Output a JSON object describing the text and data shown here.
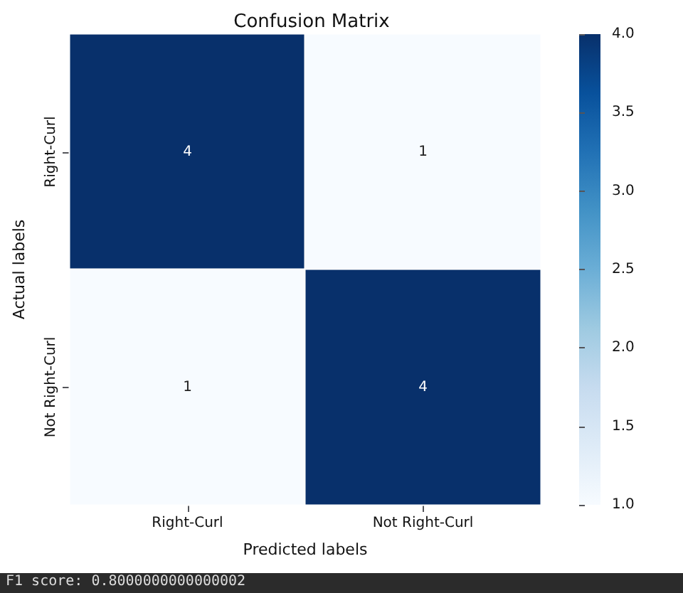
{
  "chart_data": {
    "type": "heatmap",
    "title": "Confusion Matrix",
    "xlabel": "Predicted labels",
    "ylabel": "Actual labels",
    "categories": [
      "Right-Curl",
      "Not Right-Curl"
    ],
    "y_categories": [
      "Right-Curl",
      "Not Right-Curl"
    ],
    "cells": [
      [
        4,
        1
      ],
      [
        1,
        4
      ]
    ],
    "data_labels": true,
    "clim": [
      1,
      4
    ],
    "cticks": [
      {
        "value": 1,
        "label": "1.0"
      },
      {
        "value": 1.5,
        "label": "1.5"
      },
      {
        "value": 2,
        "label": "2.0"
      },
      {
        "value": 2.5,
        "label": "2.5"
      },
      {
        "value": 3,
        "label": "3.0"
      },
      {
        "value": 3.5,
        "label": "3.5"
      },
      {
        "value": 4,
        "label": "4.0"
      }
    ],
    "annotations": [
      "F1 score: 0.8000000000000002"
    ]
  }
}
